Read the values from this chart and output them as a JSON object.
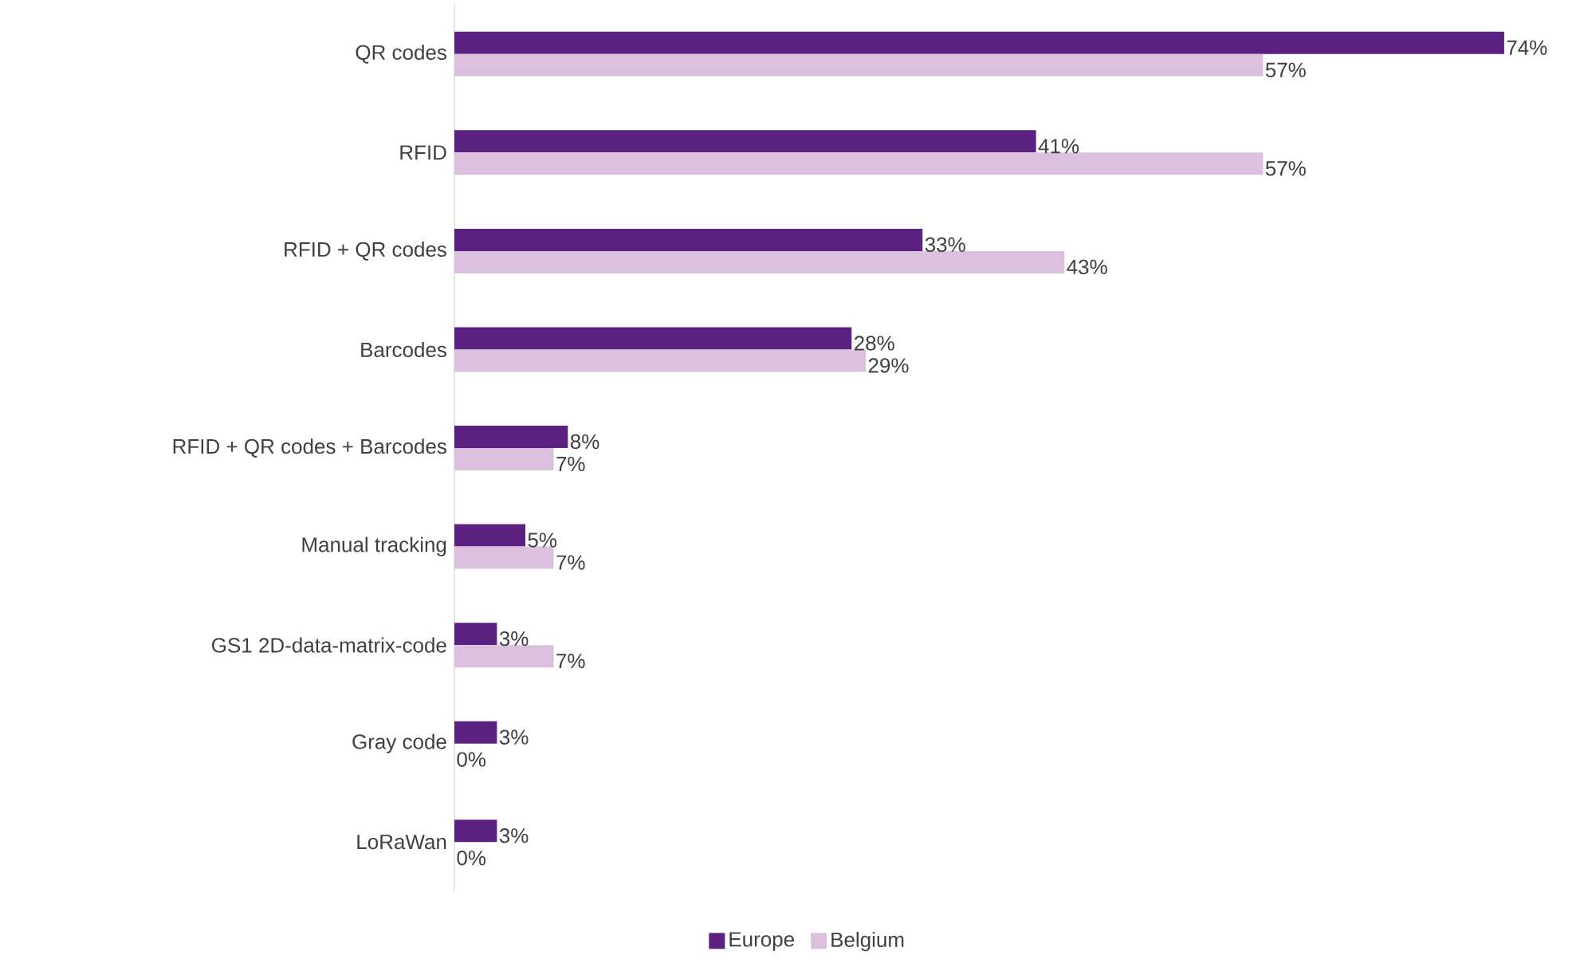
{
  "chart_data": {
    "type": "bar",
    "orientation": "horizontal",
    "legend": "bottom",
    "tick_labels": "y",
    "categories": [
      "QR codes",
      "RFID",
      "RFID + QR codes",
      "Barcodes",
      "RFID + QR codes + Barcodes",
      "Manual tracking",
      "GS1 2D-data-matrix-code",
      "Gray code",
      "LoRaWan"
    ],
    "series": [
      {
        "name": "Europe",
        "color": "#5b2180",
        "values": [
          74,
          41,
          33,
          28,
          8,
          5,
          3,
          3,
          3
        ],
        "value_labels": [
          "74%",
          "41%",
          "33%",
          "28%",
          "8%",
          "5%",
          "3%",
          "3%",
          "3%"
        ]
      },
      {
        "name": "Belgium",
        "color": "#dcc1de",
        "values": [
          57,
          57,
          43,
          29,
          7,
          7,
          7,
          0,
          0
        ],
        "value_labels": [
          "57%",
          "57%",
          "43%",
          "29%",
          "7%",
          "7%",
          "7%",
          "0%",
          "0%"
        ]
      }
    ]
  }
}
